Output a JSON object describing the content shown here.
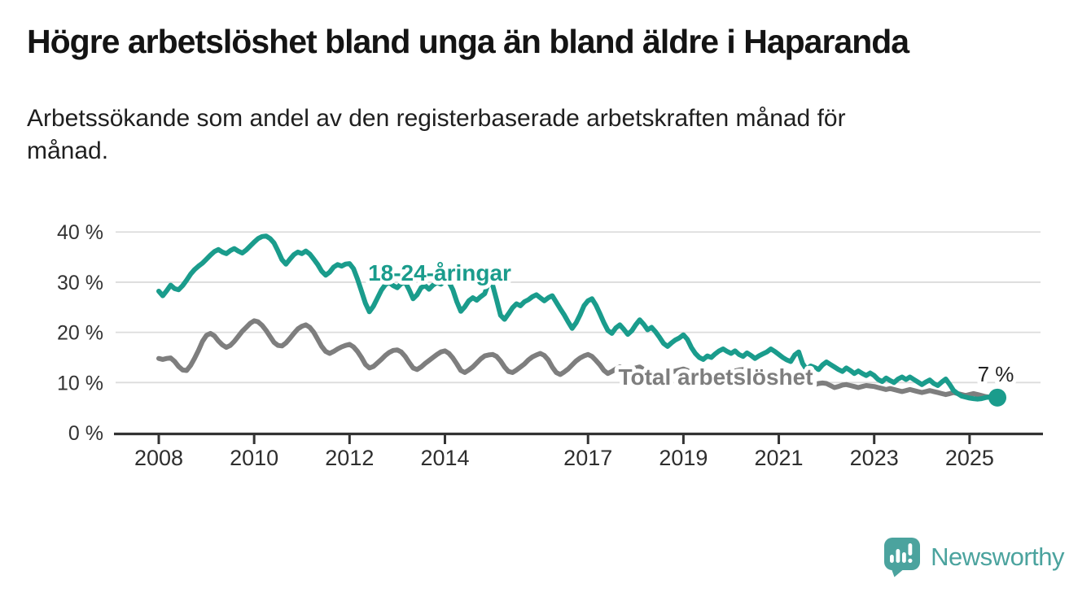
{
  "header": {
    "title": "Högre arbetslöshet bland unga än bland äldre i Haparanda",
    "subtitle": "Arbetssökande som andel av den registerbaserade arbetskraften månad för månad."
  },
  "chart_data": {
    "type": "line",
    "unit": "%",
    "frequency": "monthly",
    "x_start": "2008-01",
    "x_end": "2025-08",
    "grid": true,
    "ylim": [
      0,
      42
    ],
    "y_ticks": [
      {
        "value": 0,
        "label": "0 %"
      },
      {
        "value": 10,
        "label": "10 %"
      },
      {
        "value": 20,
        "label": "20 %"
      },
      {
        "value": 30,
        "label": "30 %"
      },
      {
        "value": 40,
        "label": "40 %"
      }
    ],
    "x_ticks": [
      {
        "year": 2008,
        "label": "2008"
      },
      {
        "year": 2010,
        "label": "2010"
      },
      {
        "year": 2012,
        "label": "2012"
      },
      {
        "year": 2014,
        "label": "2014"
      },
      {
        "year": 2017,
        "label": "2017"
      },
      {
        "year": 2019,
        "label": "2019"
      },
      {
        "year": 2021,
        "label": "2021"
      },
      {
        "year": 2023,
        "label": "2023"
      },
      {
        "year": 2025,
        "label": "2025"
      }
    ],
    "series": [
      {
        "name": "18-24-åringar",
        "color": "#1a9c8c",
        "values": [
          28.2,
          27.3,
          28.3,
          29.4,
          28.7,
          28.5,
          29.3,
          30.4,
          31.6,
          32.5,
          33.2,
          33.8,
          34.6,
          35.4,
          36.1,
          36.5,
          36.0,
          35.7,
          36.3,
          36.7,
          36.2,
          35.8,
          36.4,
          37.2,
          38.0,
          38.7,
          39.1,
          39.2,
          38.7,
          37.8,
          36.2,
          34.5,
          33.6,
          34.6,
          35.5,
          36.0,
          35.7,
          36.2,
          35.6,
          34.6,
          33.5,
          32.2,
          31.4,
          32.0,
          33.0,
          33.5,
          33.2,
          33.6,
          33.7,
          32.7,
          30.6,
          28.2,
          25.8,
          24.1,
          25.2,
          26.8,
          28.4,
          29.5,
          29.9,
          29.3,
          28.9,
          29.7,
          30.0,
          28.5,
          26.7,
          27.5,
          28.9,
          29.3,
          28.6,
          29.4,
          29.9,
          29.6,
          30.3,
          30.0,
          28.5,
          26.1,
          24.2,
          25.1,
          26.3,
          26.9,
          26.4,
          27.1,
          27.7,
          29.9,
          29.4,
          26.5,
          23.4,
          22.6,
          23.7,
          24.9,
          25.7,
          25.3,
          26.1,
          26.5,
          27.1,
          27.5,
          26.9,
          26.3,
          26.9,
          27.3,
          26.0,
          24.7,
          23.5,
          22.1,
          20.8,
          21.9,
          23.5,
          25.3,
          26.3,
          26.7,
          25.4,
          23.7,
          21.9,
          20.4,
          19.8,
          20.9,
          21.5,
          20.6,
          19.6,
          20.3,
          21.5,
          22.5,
          21.6,
          20.5,
          21.0,
          20.1,
          19.0,
          17.8,
          17.2,
          17.9,
          18.5,
          18.9,
          19.5,
          18.6,
          17.0,
          15.8,
          15.0,
          14.6,
          15.3,
          15.0,
          15.7,
          16.3,
          16.7,
          16.2,
          15.8,
          16.3,
          15.6,
          15.2,
          15.9,
          15.4,
          14.8,
          15.3,
          15.7,
          16.1,
          16.7,
          16.2,
          15.6,
          15.0,
          14.5,
          14.2,
          15.5,
          16.1,
          13.8,
          12.6,
          13.3,
          13.0,
          12.6,
          13.5,
          14.1,
          13.6,
          13.1,
          12.6,
          12.2,
          12.9,
          12.4,
          11.8,
          12.3,
          11.8,
          11.4,
          11.9,
          11.4,
          10.6,
          10.2,
          10.9,
          10.4,
          10.0,
          10.7,
          11.1,
          10.6,
          11.1,
          10.6,
          10.1,
          9.6,
          10.1,
          10.5,
          9.8,
          9.4,
          10.1,
          10.7,
          9.6,
          8.4,
          7.8,
          7.3,
          7.1,
          6.9,
          6.8,
          6.7,
          6.8,
          7.0,
          7.1,
          7.0,
          7.0
        ]
      },
      {
        "name": "Total arbetslöshet",
        "color": "#7e7e7e",
        "values": [
          14.8,
          14.6,
          14.8,
          14.9,
          14.2,
          13.2,
          12.5,
          12.4,
          13.4,
          14.8,
          16.4,
          18.2,
          19.4,
          19.8,
          19.3,
          18.3,
          17.5,
          17.0,
          17.4,
          18.2,
          19.2,
          20.2,
          21.0,
          21.8,
          22.3,
          22.1,
          21.4,
          20.4,
          19.2,
          18.0,
          17.4,
          17.3,
          17.9,
          18.8,
          19.8,
          20.7,
          21.2,
          21.5,
          21.0,
          20.0,
          18.6,
          17.2,
          16.2,
          15.8,
          16.2,
          16.7,
          17.1,
          17.4,
          17.6,
          17.1,
          16.2,
          15.0,
          13.6,
          12.9,
          13.2,
          13.9,
          14.6,
          15.4,
          16.0,
          16.4,
          16.5,
          16.1,
          15.2,
          14.0,
          12.9,
          12.6,
          13.1,
          13.8,
          14.4,
          15.0,
          15.6,
          16.1,
          16.3,
          15.8,
          14.9,
          13.7,
          12.4,
          12.0,
          12.5,
          13.1,
          13.9,
          14.7,
          15.3,
          15.5,
          15.6,
          15.2,
          14.3,
          13.1,
          12.2,
          12.0,
          12.5,
          13.1,
          13.7,
          14.5,
          15.1,
          15.5,
          15.8,
          15.4,
          14.5,
          13.1,
          12.0,
          11.6,
          12.1,
          12.7,
          13.5,
          14.3,
          14.9,
          15.3,
          15.6,
          15.2,
          14.4,
          13.5,
          12.4,
          11.8,
          12.2,
          12.7,
          13.1,
          12.7,
          12.3,
          12.5,
          12.9,
          13.1,
          12.6,
          12.0,
          11.4,
          11.1,
          11.3,
          11.7,
          11.9,
          12.1,
          12.3,
          12.5,
          12.7,
          12.4,
          11.8,
          11.2,
          10.8,
          10.6,
          10.9,
          11.1,
          11.3,
          11.5,
          11.7,
          11.9,
          12.1,
          12.3,
          12.5,
          12.6,
          12.4,
          12.0,
          11.8,
          11.6,
          11.4,
          11.2,
          11.0,
          10.8,
          10.6,
          10.4,
          10.2,
          10.0,
          9.8,
          10.0,
          9.8,
          9.6,
          9.4,
          9.6,
          9.8,
          9.9,
          9.8,
          9.4,
          9.0,
          9.2,
          9.5,
          9.6,
          9.4,
          9.2,
          9.0,
          9.2,
          9.4,
          9.3,
          9.2,
          9.0,
          8.8,
          8.6,
          8.8,
          8.6,
          8.4,
          8.2,
          8.4,
          8.6,
          8.4,
          8.2,
          8.0,
          8.2,
          8.4,
          8.2,
          8.0,
          7.8,
          7.6,
          7.8,
          8.0,
          7.8,
          7.6,
          7.4,
          7.6,
          7.8,
          7.6,
          7.4,
          7.2,
          7.1,
          7.0,
          7.0
        ]
      }
    ],
    "end_annotation": {
      "text": "7 %",
      "series": "18-24-åringar",
      "value": 7
    }
  },
  "colors": {
    "accent": "#1a9c8c",
    "secondary": "#7e7e7e",
    "grid": "#dcdcdc",
    "axis": "#333333"
  },
  "footer": {
    "brand": "Newsworthy",
    "brand_color": "#4ba39e"
  }
}
